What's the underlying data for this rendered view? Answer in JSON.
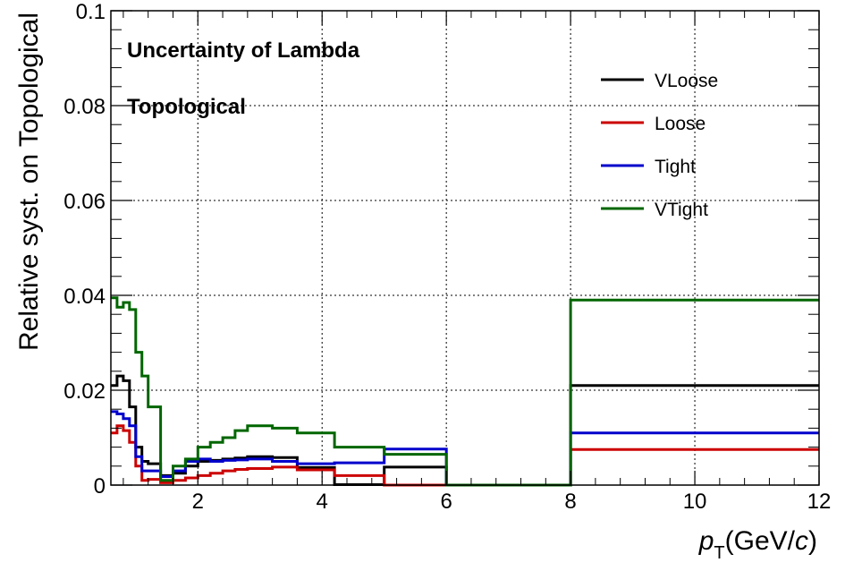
{
  "chart_data": {
    "type": "line",
    "step": true,
    "title": "",
    "annotations": [
      "Uncertainty of Lambda",
      "Topological"
    ],
    "ylabel": "Relative syst. on Topological",
    "xlabel": {
      "main": "p",
      "sub": "T",
      "rest": "(GeV/",
      "unit_italic": "c",
      "close": ")"
    },
    "xlim": [
      0.6,
      12
    ],
    "ylim": [
      0,
      0.1
    ],
    "x_ticks": [
      2,
      4,
      6,
      8,
      10,
      12
    ],
    "x_tick_labels": [
      "2",
      "4",
      "6",
      "8",
      "10",
      "12"
    ],
    "y_ticks": [
      0,
      0.02,
      0.04,
      0.06,
      0.08,
      0.1
    ],
    "y_tick_labels": [
      "0",
      "0.02",
      "0.04",
      "0.06",
      "0.08",
      "0.1"
    ],
    "grid": true,
    "legend_position": "top-right",
    "bin_edges": [
      0.6,
      0.7,
      0.8,
      0.9,
      1.0,
      1.1,
      1.2,
      1.4,
      1.6,
      1.8,
      2.0,
      2.2,
      2.4,
      2.6,
      2.8,
      3.2,
      3.6,
      4.2,
      5.0,
      6.0,
      8.0,
      12.0
    ],
    "series": [
      {
        "name": "VLoose",
        "color": "#000000",
        "values": [
          0.021,
          0.023,
          0.022,
          0.0165,
          0.008,
          0.005,
          0.0045,
          0.002,
          0.0025,
          0.004,
          0.005,
          0.0052,
          0.0055,
          0.0057,
          0.006,
          0.0058,
          0.0037,
          0.0001,
          0.0038,
          0.0,
          0.021
        ]
      },
      {
        "name": "Loose",
        "color": "#cc0000",
        "values": [
          0.011,
          0.0125,
          0.0115,
          0.009,
          0.004,
          0.001,
          0.0012,
          0.0005,
          0.001,
          0.0015,
          0.002,
          0.0025,
          0.003,
          0.0033,
          0.0035,
          0.0038,
          0.0032,
          0.002,
          0.0,
          0.0,
          0.0075
        ]
      },
      {
        "name": "Tight",
        "color": "#0000cc",
        "values": [
          0.0155,
          0.015,
          0.014,
          0.0125,
          0.006,
          0.003,
          0.003,
          0.0018,
          0.003,
          0.005,
          0.0055,
          0.005,
          0.0052,
          0.0053,
          0.0055,
          0.005,
          0.0045,
          0.0047,
          0.0076,
          0.0,
          0.011
        ]
      },
      {
        "name": "VTight",
        "color": "#006600",
        "values": [
          0.0395,
          0.0375,
          0.0385,
          0.037,
          0.028,
          0.023,
          0.0165,
          0.001,
          0.004,
          0.0055,
          0.008,
          0.009,
          0.01,
          0.0115,
          0.0125,
          0.012,
          0.011,
          0.008,
          0.0065,
          0.0,
          0.039
        ]
      }
    ]
  }
}
